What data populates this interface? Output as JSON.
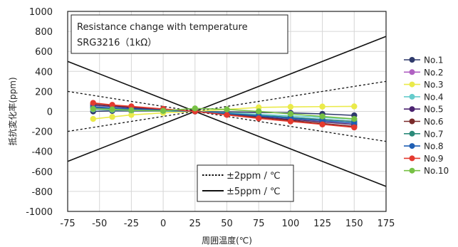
{
  "chart_data": {
    "type": "line",
    "title": "Resistance change with temperature",
    "subtitle": "SRG3216（1kΩ）",
    "xlabel": "周囲温度(℃)",
    "ylabel": "抵抗変化率(ppm)",
    "xlim": [
      -75,
      175
    ],
    "ylim": [
      -1000,
      1000
    ],
    "xticks": [
      "-75",
      "-50",
      "-25",
      "0",
      "25",
      "50",
      "75",
      "100",
      "125",
      "150",
      "175"
    ],
    "yticks": [
      "1000",
      "800",
      "600",
      "400",
      "200",
      "0",
      "-200",
      "-400",
      "-600",
      "-800",
      "-1000"
    ],
    "x": [
      -55,
      -40,
      -25,
      0,
      25,
      50,
      75,
      100,
      125,
      150
    ],
    "series": [
      {
        "name": "No.1",
        "color": "#2f3a6b",
        "values": [
          0,
          5,
          5,
          3,
          0,
          -5,
          -10,
          -15,
          -25,
          -40
        ]
      },
      {
        "name": "No.2",
        "color": "#b061c2",
        "values": [
          30,
          25,
          15,
          8,
          0,
          -20,
          -40,
          -60,
          -80,
          -100
        ]
      },
      {
        "name": "No.3",
        "color": "#eaea4a",
        "values": [
          -75,
          -55,
          -35,
          -15,
          0,
          20,
          40,
          45,
          48,
          50
        ]
      },
      {
        "name": "No.4",
        "color": "#66cccc",
        "values": [
          20,
          15,
          10,
          5,
          0,
          -15,
          -30,
          -45,
          -60,
          -80
        ]
      },
      {
        "name": "No.5",
        "color": "#4b2370",
        "values": [
          60,
          50,
          35,
          18,
          0,
          -25,
          -55,
          -80,
          -105,
          -130
        ]
      },
      {
        "name": "No.6",
        "color": "#7a2a2a",
        "values": [
          75,
          60,
          45,
          22,
          0,
          -30,
          -60,
          -90,
          -120,
          -150
        ]
      },
      {
        "name": "No.7",
        "color": "#2c8a7a",
        "values": [
          40,
          30,
          20,
          10,
          0,
          -20,
          -40,
          -60,
          -80,
          -100
        ]
      },
      {
        "name": "No.8",
        "color": "#1f5fb4",
        "values": [
          45,
          35,
          25,
          12,
          0,
          -22,
          -45,
          -68,
          -92,
          -115
        ]
      },
      {
        "name": "No.9",
        "color": "#e43a2f",
        "values": [
          85,
          65,
          50,
          25,
          0,
          -35,
          -70,
          -100,
          -130,
          -160
        ]
      },
      {
        "name": "No.10",
        "color": "#77c145",
        "values": [
          25,
          20,
          12,
          6,
          30,
          20,
          0,
          -25,
          -50,
          -75
        ]
      }
    ],
    "reference_lines": [
      {
        "label": "±2ppm / ℃",
        "style": "dotted",
        "slope": 2
      },
      {
        "label": "±5ppm / ℃",
        "style": "solid",
        "slope": 5
      }
    ],
    "reference_x": 25,
    "grid": true,
    "legend_position": "right"
  }
}
